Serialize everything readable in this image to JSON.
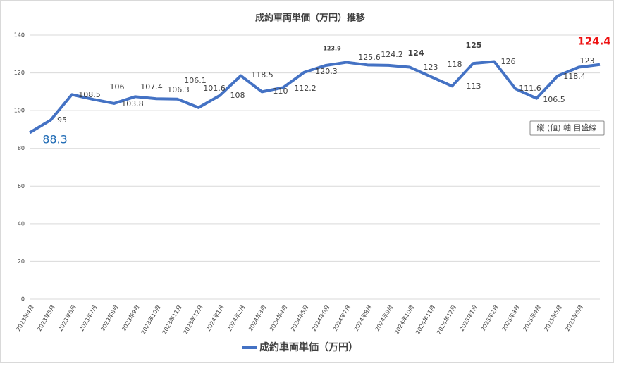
{
  "chart_data": {
    "type": "line",
    "title": "成約車両単価（万円）推移",
    "categories": [
      "2023年4月",
      "2023年5月",
      "2023年6月",
      "2023年7月",
      "2023年8月",
      "2023年9月",
      "2023年10月",
      "2023年11月",
      "2023年12月",
      "2024年1月",
      "2024年2月",
      "2024年3月",
      "2024年4月",
      "2024年5月",
      "2024年6月",
      "2024年7月",
      "2024年8月",
      "2024年9月",
      "2024年10月",
      "2024年11月",
      "2024年12月",
      "2025年1月",
      "2025年2月",
      "2025年3月",
      "2025年4月",
      "2025年5月",
      "2025年6月",
      null
    ],
    "series": [
      {
        "name": "成約車両単価（万円）",
        "color": "#4472c4",
        "values": [
          88.3,
          95,
          108.5,
          106,
          103.8,
          107.4,
          106.3,
          106.1,
          101.6,
          108,
          118.5,
          110,
          112.2,
          120.3,
          123.9,
          125.6,
          124.2,
          124,
          123,
          118,
          113,
          125,
          126,
          111.6,
          106.5,
          118.4,
          123,
          124.4
        ]
      }
    ],
    "ylim": [
      0,
      140
    ],
    "yticks": [
      0,
      20,
      40,
      60,
      80,
      100,
      120,
      140
    ],
    "grid": true,
    "tooltip": "縦 (値) 軸 目盛線"
  }
}
